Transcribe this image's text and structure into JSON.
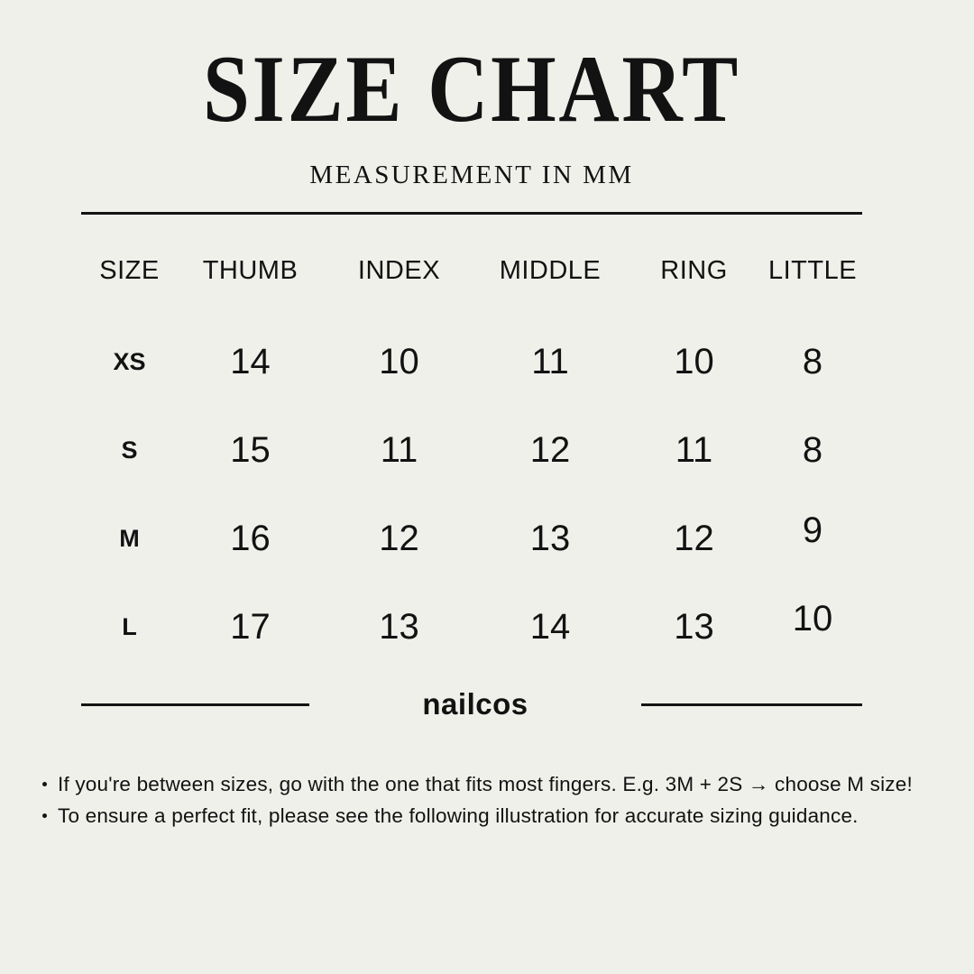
{
  "header": {
    "title": "SIZE CHART",
    "subtitle": "MEASUREMENT IN MM"
  },
  "brand": {
    "name": "nailcos"
  },
  "chart_data": {
    "type": "table",
    "title": "SIZE CHART",
    "subtitle": "MEASUREMENT IN MM",
    "units": "mm",
    "columns": [
      "SIZE",
      "THUMB",
      "INDEX",
      "MIDDLE",
      "RING",
      "LITTLE"
    ],
    "rows": [
      [
        "XS",
        14,
        10,
        11,
        10,
        8
      ],
      [
        "S",
        15,
        11,
        12,
        11,
        8
      ],
      [
        "M",
        16,
        12,
        13,
        12,
        9
      ],
      [
        "L",
        17,
        13,
        14,
        13,
        10
      ]
    ]
  },
  "notes": [
    "If you're between sizes, go with the one that fits most fingers. E.g. 3M + 2S → choose M size!",
    "To ensure a perfect fit, please see the following illustration for accurate sizing guidance."
  ],
  "colors": {
    "background": "#eff0ea",
    "text": "#121212",
    "line": "#141414"
  }
}
